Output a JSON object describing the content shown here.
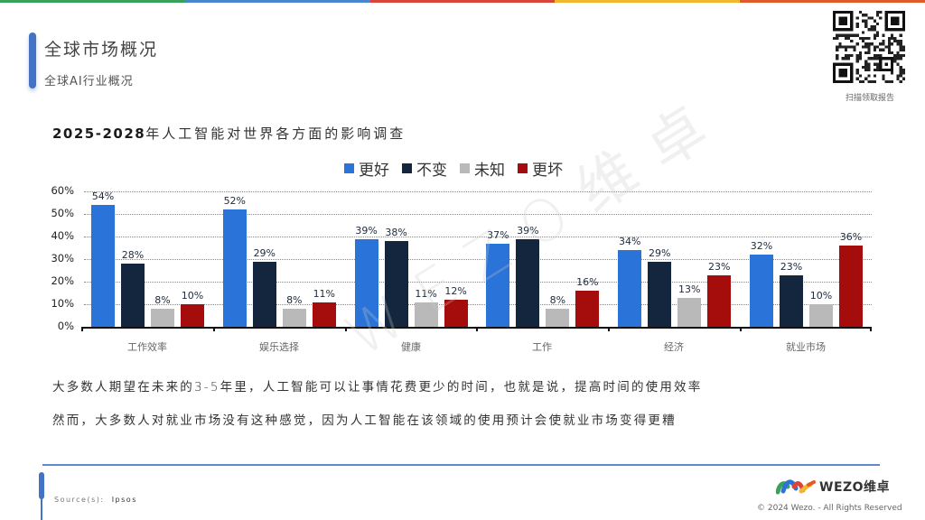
{
  "top_bar": {
    "colors": [
      "#3aa15a",
      "#4a86cf",
      "#d9443b",
      "#f0b730",
      "#e05b2b"
    ]
  },
  "header": {
    "title": "全球市场概况",
    "subtitle": "全球AI行业概况",
    "accent_color": "#4472c4"
  },
  "qr": {
    "caption": "扫描领取报告",
    "icon": "qr-code-icon"
  },
  "chart_title": {
    "year_range": "2025-2028",
    "rest": "年人工智能对世界各方面的影响调查"
  },
  "legend": [
    {
      "label": "更好",
      "color": "#2a74d9"
    },
    {
      "label": "不变",
      "color": "#13263d"
    },
    {
      "label": "未知",
      "color": "#b9b9b9"
    },
    {
      "label": "更坏",
      "color": "#a50d0d"
    }
  ],
  "y_ticks": [
    "60%",
    "50%",
    "40%",
    "30%",
    "20%",
    "10%",
    "0%"
  ],
  "categories": [
    "工作效率",
    "娱乐选择",
    "健康",
    "工作",
    "经济",
    "就业市场"
  ],
  "bar_labels": [
    [
      "54%",
      "28%",
      "8%",
      "10%"
    ],
    [
      "52%",
      "29%",
      "8%",
      "11%"
    ],
    [
      "39%",
      "38%",
      "11%",
      "12%"
    ],
    [
      "37%",
      "39%",
      "8%",
      "16%"
    ],
    [
      "34%",
      "29%",
      "13%",
      "23%"
    ],
    [
      "32%",
      "23%",
      "10%",
      "36%"
    ]
  ],
  "watermark": "WEZO维卓",
  "body": {
    "line1": "大多数人期望在未来的3-5年里，人工智能可以让事情花费更少的时间，也就是说，提高时间的使用效率",
    "line2": "然而，大多数人对就业市场没有这种感觉，因为人工智能在该领域的使用预计会使就业市场变得更糟"
  },
  "footer": {
    "source_label": "Source(s):",
    "source_value": "Ipsos",
    "logo_text": "WEZO维卓",
    "copyright": "© 2024 Wezo. - All Rights Reserved"
  },
  "chart_data": {
    "type": "bar",
    "title": "2025-2028年人工智能对世界各方面的影响调查",
    "xlabel": "",
    "ylabel": "",
    "ylim": [
      0,
      60
    ],
    "y_ticks": [
      0,
      10,
      20,
      30,
      40,
      50,
      60
    ],
    "y_tick_format": "percent",
    "grid": true,
    "legend_position": "top",
    "categories": [
      "工作效率",
      "娱乐选择",
      "健康",
      "工作",
      "经济",
      "就业市场"
    ],
    "series": [
      {
        "name": "更好",
        "color": "#2a74d9",
        "values": [
          54,
          52,
          39,
          37,
          34,
          32
        ]
      },
      {
        "name": "不变",
        "color": "#13263d",
        "values": [
          28,
          29,
          38,
          39,
          29,
          23
        ]
      },
      {
        "name": "未知",
        "color": "#b9b9b9",
        "values": [
          8,
          8,
          11,
          8,
          13,
          10
        ]
      },
      {
        "name": "更坏",
        "color": "#a50d0d",
        "values": [
          10,
          11,
          12,
          16,
          23,
          36
        ]
      }
    ]
  }
}
